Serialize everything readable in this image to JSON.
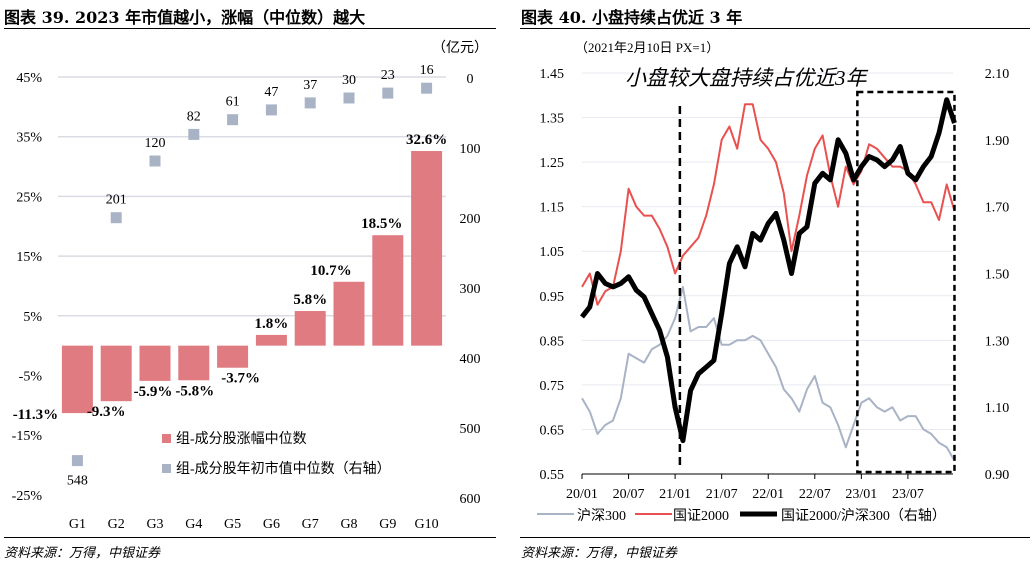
{
  "left": {
    "title": "图表 39. 2023 年市值越小，涨幅（中位数）越大",
    "source": "资料来源：万得，中银证券",
    "chart_data": {
      "type": "bar+scatter",
      "categories": [
        "G1",
        "G2",
        "G3",
        "G4",
        "G5",
        "G6",
        "G7",
        "G8",
        "G9",
        "G10"
      ],
      "series": [
        {
          "name": "组-成分股涨幅中位数",
          "kind": "bar",
          "axis": "left",
          "color": "#E07B81",
          "values": [
            -11.3,
            -9.3,
            -5.9,
            -5.8,
            -3.7,
            1.8,
            5.8,
            10.7,
            18.5,
            32.6
          ],
          "labels": [
            "-11.3%",
            "-9.3%",
            "-5.9%",
            "-5.8%",
            "-3.7%",
            "1.8%",
            "5.8%",
            "10.7%",
            "18.5%",
            "32.6%"
          ]
        },
        {
          "name": "组-成分股年初市值中位数（右轴）",
          "kind": "scatter",
          "axis": "right",
          "color": "#A9B3C6",
          "values": [
            548,
            201,
            120,
            82,
            61,
            47,
            37,
            30,
            23,
            16
          ]
        }
      ],
      "y_left": {
        "ticks": [
          "45%",
          "35%",
          "25%",
          "15%",
          "5%",
          "-5%",
          "-15%",
          "-25%"
        ],
        "range": [
          -25,
          45
        ]
      },
      "y_right": {
        "unit": "（亿元）",
        "ticks": [
          "0",
          "100",
          "200",
          "300",
          "400",
          "500",
          "600"
        ],
        "range": [
          0,
          600
        ],
        "inverted": true
      },
      "legend": "inside-bottom",
      "grid": true
    }
  },
  "right": {
    "title": "图表 40. 小盘持续占优近 3 年",
    "source": "资料来源：万得，中银证券",
    "chart_data": {
      "type": "line",
      "subtitle": "（2021年2月10日  PX=1）",
      "annotation": "小盘较大盘持续占优近3年",
      "x_ticks": [
        "20/01",
        "20/07",
        "21/01",
        "21/07",
        "22/01",
        "22/07",
        "23/01",
        "23/07"
      ],
      "x": [
        "2020-01",
        "2020-02",
        "2020-03",
        "2020-04",
        "2020-05",
        "2020-06",
        "2020-07",
        "2020-08",
        "2020-09",
        "2020-10",
        "2020-11",
        "2020-12",
        "2021-01",
        "2021-02",
        "2021-03",
        "2021-04",
        "2021-05",
        "2021-06",
        "2021-07",
        "2021-08",
        "2021-09",
        "2021-10",
        "2021-11",
        "2021-12",
        "2022-01",
        "2022-02",
        "2022-03",
        "2022-04",
        "2022-05",
        "2022-06",
        "2022-07",
        "2022-08",
        "2022-09",
        "2022-10",
        "2022-11",
        "2022-12",
        "2023-01",
        "2023-02",
        "2023-03",
        "2023-04",
        "2023-05",
        "2023-06",
        "2023-07",
        "2023-08",
        "2023-09",
        "2023-10",
        "2023-11",
        "2023-12",
        "2024-01"
      ],
      "y_left": {
        "ticks": [
          "1.45",
          "1.35",
          "1.25",
          "1.15",
          "1.05",
          "0.95",
          "0.85",
          "0.75",
          "0.65",
          "0.55"
        ],
        "range": [
          0.55,
          1.45
        ]
      },
      "y_right": {
        "ticks": [
          "2.10",
          "1.90",
          "1.70",
          "1.50",
          "1.30",
          "1.10",
          "0.90"
        ],
        "range": [
          0.9,
          2.1
        ]
      },
      "series": [
        {
          "name": "沪深300",
          "axis": "left",
          "color": "#A9B3C6",
          "values": [
            0.72,
            0.69,
            0.64,
            0.66,
            0.67,
            0.72,
            0.82,
            0.81,
            0.8,
            0.83,
            0.84,
            0.86,
            0.9,
            0.97,
            0.87,
            0.88,
            0.88,
            0.9,
            0.84,
            0.84,
            0.85,
            0.85,
            0.86,
            0.85,
            0.82,
            0.79,
            0.74,
            0.72,
            0.69,
            0.74,
            0.77,
            0.71,
            0.7,
            0.66,
            0.61,
            0.66,
            0.71,
            0.72,
            0.7,
            0.69,
            0.7,
            0.67,
            0.68,
            0.68,
            0.65,
            0.64,
            0.62,
            0.61,
            0.58
          ]
        },
        {
          "name": "国证2000",
          "axis": "left",
          "color": "#E8514F",
          "values": [
            0.97,
            1.0,
            0.93,
            0.96,
            0.97,
            1.05,
            1.19,
            1.15,
            1.13,
            1.13,
            1.1,
            1.06,
            1.0,
            1.04,
            1.06,
            1.08,
            1.13,
            1.2,
            1.3,
            1.33,
            1.28,
            1.38,
            1.38,
            1.3,
            1.28,
            1.25,
            1.18,
            1.05,
            1.13,
            1.22,
            1.28,
            1.31,
            1.22,
            1.15,
            1.24,
            1.2,
            1.23,
            1.29,
            1.28,
            1.26,
            1.24,
            1.24,
            1.23,
            1.2,
            1.16,
            1.16,
            1.12,
            1.2,
            1.14
          ]
        },
        {
          "name": "国证2000/沪深300（右轴）",
          "axis": "right",
          "color": "#000000",
          "values": [
            1.37,
            1.4,
            1.5,
            1.47,
            1.46,
            1.47,
            1.49,
            1.45,
            1.43,
            1.38,
            1.33,
            1.25,
            1.1,
            1.0,
            1.15,
            1.2,
            1.22,
            1.24,
            1.38,
            1.53,
            1.58,
            1.52,
            1.62,
            1.6,
            1.65,
            1.68,
            1.6,
            1.5,
            1.62,
            1.64,
            1.77,
            1.8,
            1.78,
            1.9,
            1.86,
            1.78,
            1.82,
            1.85,
            1.84,
            1.82,
            1.84,
            1.88,
            1.8,
            1.78,
            1.82,
            1.85,
            1.92,
            2.02,
            1.95
          ]
        }
      ],
      "markers": {
        "vertical_dashed": "2021-02",
        "dashed_box": [
          "2023-01",
          "2024-01"
        ]
      },
      "legend": "bottom",
      "grid": true
    }
  }
}
